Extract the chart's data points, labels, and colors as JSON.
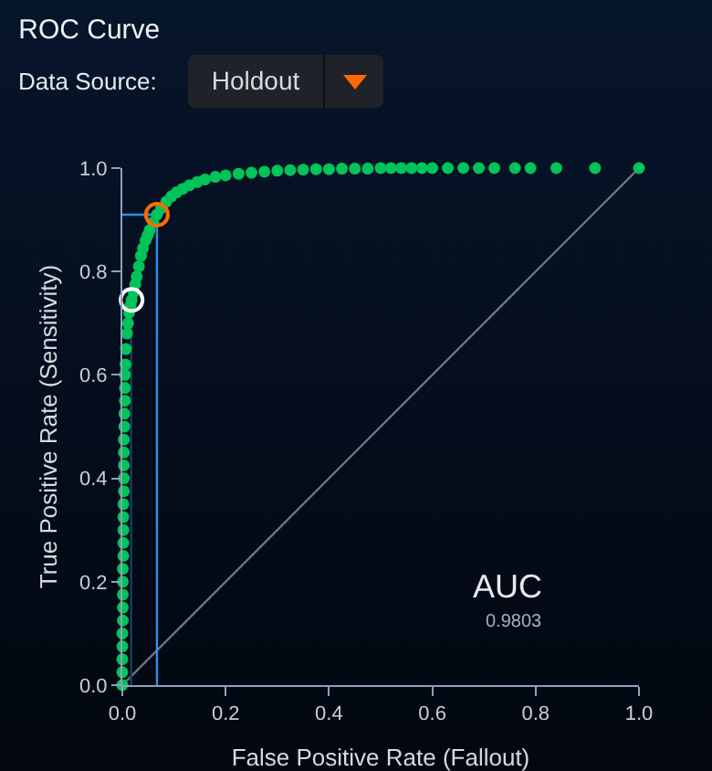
{
  "chart_data": {
    "type": "scatter",
    "title": "ROC Curve",
    "xlabel": "False Positive Rate (Fallout)",
    "ylabel": "True Positive Rate (Sensitivity)",
    "annotations": [
      "Data Source:",
      "Holdout",
      "AUC",
      "0.9803"
    ],
    "xlim": [
      0,
      1
    ],
    "ylim": [
      0,
      1
    ],
    "xticks": [
      {
        "value": 0,
        "label": "0.0"
      },
      {
        "value": 0.2,
        "label": "0.2"
      },
      {
        "value": 0.4,
        "label": "0.4"
      },
      {
        "value": 0.6,
        "label": "0.6"
      },
      {
        "value": 0.8,
        "label": "0.8"
      },
      {
        "value": 1,
        "label": "1.0"
      }
    ],
    "yticks": [
      {
        "value": 0,
        "label": "0.0"
      },
      {
        "value": 0.2,
        "label": "0.2"
      },
      {
        "value": 0.4,
        "label": "0.4"
      },
      {
        "value": 0.6,
        "label": "0.6"
      },
      {
        "value": 0.8,
        "label": "0.8"
      },
      {
        "value": 1,
        "label": "1.0"
      }
    ],
    "grid": false,
    "legend": false,
    "marker": "circle",
    "series": [
      {
        "type": "line",
        "marker": "none",
        "color": "#6b7380",
        "x": [
          0,
          1
        ],
        "values": [
          0,
          1
        ]
      },
      {
        "type": "line",
        "marker": "none",
        "color": "#1c3d63",
        "x": [
          0.017,
          0.017
        ],
        "values": [
          0,
          0.745
        ]
      },
      {
        "type": "line",
        "marker": "none",
        "color": "#2e8fe8",
        "x": [
          0.067,
          0.067,
          0
        ],
        "values": [
          0,
          0.91,
          0.91
        ]
      },
      {
        "color": "#00c45a",
        "x": [
          0,
          0,
          0,
          0,
          0,
          0.001,
          0.001,
          0.001,
          0.001,
          0.001,
          0.002,
          0.002,
          0.002,
          0.002,
          0.002,
          0.003,
          0.003,
          0.003,
          0.003,
          0.003,
          0.004,
          0.004,
          0.005,
          0.005,
          0.005,
          0.006,
          0.007,
          0.009,
          0.011,
          0.013,
          0.016,
          0.018,
          0.022,
          0.025,
          0.028,
          0.032,
          0.036,
          0.04,
          0.045,
          0.049,
          0.053,
          0.06,
          0.067,
          0.075,
          0.085,
          0.095,
          0.105,
          0.117,
          0.13,
          0.145,
          0.16,
          0.18,
          0.2,
          0.225,
          0.25,
          0.275,
          0.3,
          0.325,
          0.35,
          0.375,
          0.4,
          0.425,
          0.45,
          0.475,
          0.5,
          0.52,
          0.54,
          0.56,
          0.58,
          0.6,
          0.63,
          0.66,
          0.69,
          0.72,
          0.76,
          0.79,
          0.84,
          0.915,
          1
        ],
        "values": [
          0,
          0.025,
          0.05,
          0.075,
          0.1,
          0.125,
          0.15,
          0.175,
          0.2,
          0.225,
          0.25,
          0.275,
          0.3,
          0.325,
          0.35,
          0.375,
          0.4,
          0.425,
          0.45,
          0.475,
          0.5,
          0.525,
          0.55,
          0.575,
          0.6,
          0.62,
          0.65,
          0.68,
          0.7,
          0.72,
          0.735,
          0.745,
          0.76,
          0.775,
          0.79,
          0.81,
          0.83,
          0.845,
          0.86,
          0.87,
          0.88,
          0.895,
          0.91,
          0.922,
          0.935,
          0.945,
          0.953,
          0.96,
          0.967,
          0.973,
          0.978,
          0.983,
          0.986,
          0.989,
          0.991,
          0.993,
          0.995,
          0.996,
          0.997,
          0.998,
          0.998,
          0.999,
          0.999,
          0.999,
          1,
          1,
          1,
          1,
          1,
          1,
          1,
          1,
          1,
          1,
          1,
          1,
          1,
          1,
          1
        ]
      },
      {
        "color": "#ffffff",
        "x": [
          0.018
        ],
        "values": [
          0.745
        ]
      },
      {
        "color": "#ff6a00",
        "x": [
          0.067
        ],
        "values": [
          0.91
        ]
      }
    ]
  }
}
